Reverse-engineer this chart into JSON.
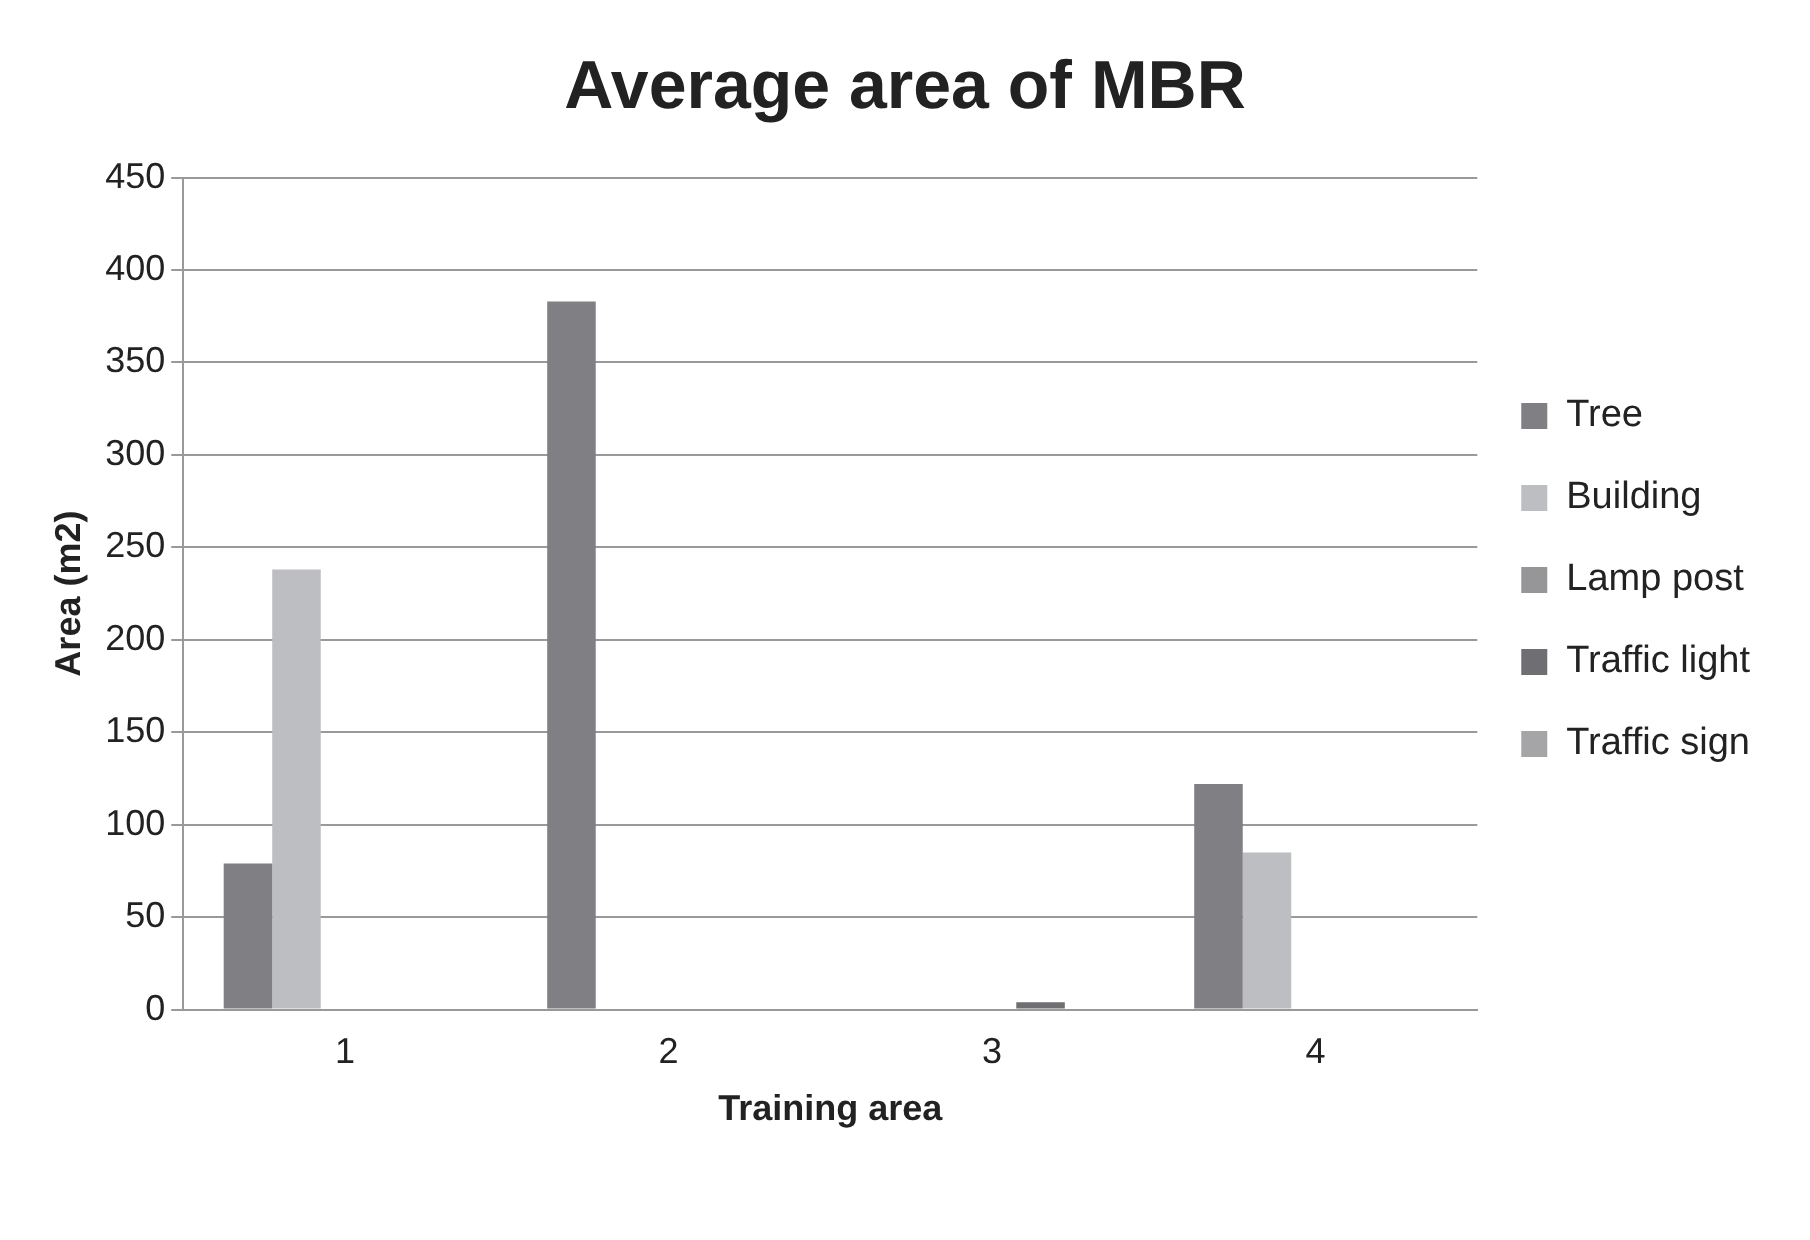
{
  "chart_data": {
    "type": "bar",
    "title": "Average area of MBR",
    "xlabel": "Training area",
    "ylabel": "Area (m2)",
    "categories": [
      "1",
      "2",
      "3",
      "4"
    ],
    "series": [
      {
        "name": "Tree",
        "color": "#7f7f84",
        "values": [
          79,
          383,
          0,
          122
        ]
      },
      {
        "name": "Building",
        "color": "#bdbec2",
        "values": [
          238,
          0,
          0,
          85
        ]
      },
      {
        "name": "Lamp post",
        "color": "#969699",
        "values": [
          0,
          0,
          0,
          0
        ]
      },
      {
        "name": "Traffic light",
        "color": "#6e6e73",
        "values": [
          0,
          0,
          4,
          0
        ]
      },
      {
        "name": "Traffic sign",
        "color": "#a5a5a8",
        "values": [
          0,
          0,
          0,
          0
        ]
      }
    ],
    "ylim": [
      0,
      450
    ],
    "yticks": [
      0,
      50,
      100,
      150,
      200,
      250,
      300,
      350,
      400,
      450
    ],
    "grid": "y",
    "legend": "right"
  }
}
